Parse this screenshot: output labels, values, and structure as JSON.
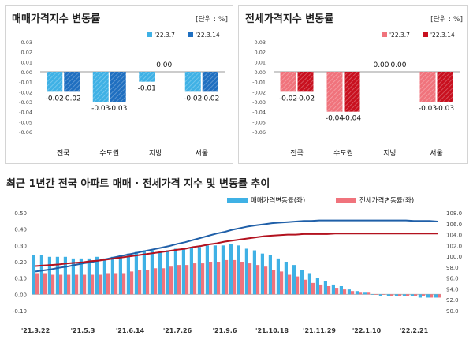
{
  "charts": {
    "left": {
      "title": "매매가격지수 변동률",
      "unit": "[단위 : %]"
    },
    "right": {
      "title": "전세가격지수 변동률",
      "unit": "[단위 : %]"
    },
    "bottom": {
      "title": "최근 1년간 전국 아파트 매매 · 전세가격 지수 및 변동률 추이"
    }
  },
  "colors": {
    "sale_light": "#3fb1e5",
    "sale_dark": "#1f6fc0",
    "jeonse_light": "#f0737c",
    "jeonse_dark": "#c8101f",
    "sale_index_line": "#1f5fa8",
    "jeonse_index_line": "#b3121f"
  },
  "chart_data": [
    {
      "type": "bar",
      "categories": [
        "전국",
        "수도권",
        "지방",
        "서울"
      ],
      "series": [
        {
          "name": "'22.3.7",
          "values": [
            -0.02,
            -0.03,
            -0.01,
            -0.02
          ],
          "labels": [
            "-0.02",
            "-0.03",
            "-0.01",
            "-0.02"
          ]
        },
        {
          "name": "'22.3.14",
          "values": [
            -0.02,
            -0.03,
            0.0,
            -0.02
          ],
          "labels": [
            "-0.02",
            "-0.03",
            "0.00",
            "-0.02"
          ]
        }
      ],
      "ylim": [
        -0.06,
        0.03
      ],
      "yticks": [
        "0.03",
        "0.02",
        "0.01",
        "0.00",
        "-0.01",
        "-0.02",
        "-0.03",
        "-0.04",
        "-0.05",
        "-0.06"
      ],
      "legend": "top-right"
    },
    {
      "type": "bar",
      "categories": [
        "전국",
        "수도권",
        "지방",
        "서울"
      ],
      "series": [
        {
          "name": "'22.3.7",
          "values": [
            -0.02,
            -0.04,
            0.0,
            -0.03
          ],
          "labels": [
            "-0.02",
            "-0.04",
            "0.00",
            "-0.03"
          ]
        },
        {
          "name": "'22.3.14",
          "values": [
            -0.02,
            -0.04,
            0.0,
            -0.03
          ],
          "labels": [
            "-0.02",
            "-0.04",
            "0.00",
            "-0.03"
          ]
        }
      ],
      "ylim": [
        -0.06,
        0.03
      ],
      "yticks": [
        "0.03",
        "0.02",
        "0.01",
        "0.00",
        "-0.01",
        "-0.02",
        "-0.03",
        "-0.04",
        "-0.05",
        "-0.06"
      ],
      "legend": "top-right"
    },
    {
      "type": "bar",
      "legend_labels": [
        "매매가격변동률(좌)",
        "전세가격변동률(좌)"
      ],
      "left_ylim": [
        -0.1,
        0.5
      ],
      "left_yticks": [
        "0.50",
        "0.40",
        "0.30",
        "0.20",
        "0.10",
        "0.00",
        "-0.10"
      ],
      "right_ylim": [
        90.0,
        108.0
      ],
      "right_yticks": [
        "108.0",
        "106.0",
        "104.0",
        "102.0",
        "100.0",
        "98.0",
        "96.0",
        "94.0",
        "92.0",
        "90.0"
      ],
      "x_ticks": [
        "'21.3.22",
        "'21.5.3",
        "'21.6.14",
        "'21.7.26",
        "'21.9.6",
        "'21.10.18",
        "'21.11.29",
        "'22.1.10",
        "'22.2.21"
      ],
      "series": [
        {
          "kind": "bar",
          "axis": "left",
          "values": [
            0.24,
            0.24,
            0.23,
            0.23,
            0.23,
            0.22,
            0.22,
            0.22,
            0.23,
            0.22,
            0.23,
            0.24,
            0.25,
            0.26,
            0.27,
            0.27,
            0.26,
            0.27,
            0.28,
            0.28,
            0.29,
            0.29,
            0.3,
            0.3,
            0.3,
            0.31,
            0.3,
            0.28,
            0.27,
            0.25,
            0.24,
            0.22,
            0.2,
            0.18,
            0.15,
            0.13,
            0.1,
            0.08,
            0.06,
            0.05,
            0.03,
            0.02,
            0.01,
            0.0,
            -0.01,
            -0.01,
            -0.01,
            -0.01,
            -0.01,
            -0.02,
            -0.02,
            -0.02
          ]
        },
        {
          "kind": "bar",
          "axis": "left",
          "values": [
            0.13,
            0.13,
            0.12,
            0.12,
            0.12,
            0.12,
            0.12,
            0.12,
            0.12,
            0.13,
            0.13,
            0.13,
            0.14,
            0.15,
            0.15,
            0.16,
            0.16,
            0.17,
            0.18,
            0.18,
            0.19,
            0.19,
            0.2,
            0.2,
            0.21,
            0.21,
            0.2,
            0.19,
            0.18,
            0.17,
            0.15,
            0.14,
            0.12,
            0.11,
            0.09,
            0.07,
            0.06,
            0.05,
            0.04,
            0.03,
            0.02,
            0.01,
            0.01,
            0.0,
            0.0,
            -0.01,
            -0.01,
            -0.01,
            -0.01,
            -0.01,
            -0.02,
            -0.02
          ]
        },
        {
          "kind": "line",
          "axis": "right",
          "values": [
            97.2,
            97.4,
            97.6,
            97.9,
            98.1,
            98.4,
            98.7,
            98.9,
            99.2,
            99.5,
            99.8,
            100.1,
            100.4,
            100.7,
            101.0,
            101.3,
            101.6,
            101.9,
            102.3,
            102.6,
            103.0,
            103.4,
            103.8,
            104.2,
            104.5,
            104.9,
            105.2,
            105.5,
            105.7,
            105.9,
            106.1,
            106.2,
            106.3,
            106.4,
            106.5,
            106.5,
            106.6,
            106.6,
            106.6,
            106.6,
            106.6,
            106.6,
            106.6,
            106.6,
            106.6,
            106.6,
            106.6,
            106.6,
            106.5,
            106.5,
            106.5,
            106.4
          ]
        },
        {
          "kind": "line",
          "axis": "right",
          "values": [
            98.2,
            98.3,
            98.4,
            98.5,
            98.7,
            98.8,
            98.9,
            99.1,
            99.2,
            99.4,
            99.6,
            99.8,
            100.0,
            100.2,
            100.4,
            100.6,
            100.8,
            101.0,
            101.2,
            101.4,
            101.7,
            101.9,
            102.2,
            102.4,
            102.7,
            102.9,
            103.1,
            103.3,
            103.5,
            103.7,
            103.8,
            103.9,
            104.0,
            104.0,
            104.1,
            104.1,
            104.1,
            104.1,
            104.2,
            104.2,
            104.2,
            104.2,
            104.2,
            104.2,
            104.2,
            104.2,
            104.2,
            104.2,
            104.2,
            104.2,
            104.2,
            104.2
          ]
        }
      ]
    }
  ]
}
